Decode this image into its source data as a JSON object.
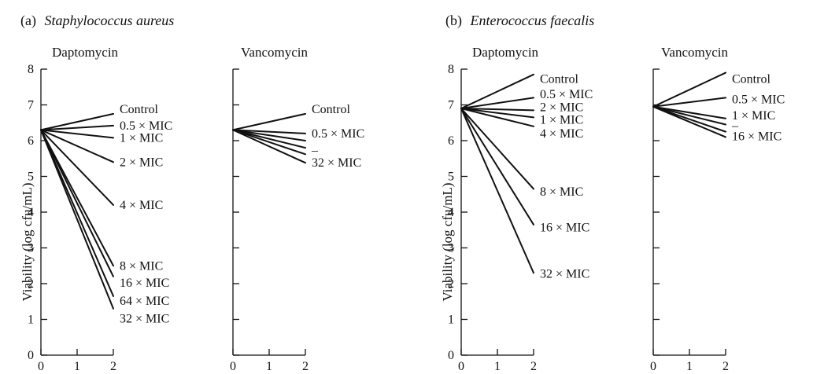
{
  "chart_data": [
    {
      "type": "line",
      "title_prefix": "(a)",
      "organism": "Staphylococcus aureus",
      "ylabel": "Viability (log cfu/mL)",
      "ylim": [
        0,
        8
      ],
      "yticks": [
        "0",
        "1",
        "2",
        "3",
        "4",
        "5",
        "6",
        "7",
        "8"
      ],
      "xticks": [
        "0",
        "1",
        "2"
      ],
      "xlim": [
        0,
        2
      ],
      "subplots": [
        {
          "title": "Daptomycin",
          "x": [
            0,
            2
          ],
          "series": [
            {
              "name": "Control",
              "values": [
                6.3,
                6.75
              ]
            },
            {
              "name": "0.5 × MIC",
              "values": [
                6.3,
                6.42
              ]
            },
            {
              "name": "1 × MIC",
              "values": [
                6.3,
                6.08
              ]
            },
            {
              "name": "2 × MIC",
              "values": [
                6.3,
                5.4
              ]
            },
            {
              "name": "4 × MIC",
              "values": [
                6.3,
                4.2
              ]
            },
            {
              "name": "8 × MIC",
              "values": [
                6.3,
                2.5
              ]
            },
            {
              "name": "16 × MIC",
              "values": [
                6.3,
                2.2
              ]
            },
            {
              "name": "64 × MIC",
              "values": [
                6.3,
                1.65
              ]
            },
            {
              "name": "32 × MIC",
              "values": [
                6.3,
                1.3
              ]
            }
          ],
          "labels": [
            {
              "text": "Control",
              "y": 6.88
            },
            {
              "text": "0.5 × MIC",
              "y": 6.42
            },
            {
              "text": "1 × MIC",
              "y": 6.08
            },
            {
              "text": "2 × MIC",
              "y": 5.4
            },
            {
              "text": "4 × MIC",
              "y": 4.2
            },
            {
              "text": "8 × MIC",
              "y": 2.5
            },
            {
              "text": "16 × MIC",
              "y": 2.02
            },
            {
              "text": "64 × MIC",
              "y": 1.52
            },
            {
              "text": "32 × MIC",
              "y": 1.02
            }
          ]
        },
        {
          "title": "Vancomycin",
          "x": [
            0,
            2
          ],
          "series": [
            {
              "name": "Control",
              "values": [
                6.3,
                6.75
              ]
            },
            {
              "name": "0.5 × MIC",
              "values": [
                6.3,
                6.2
              ]
            },
            {
              "values": [
                6.3,
                6.0
              ]
            },
            {
              "values": [
                6.3,
                5.8
              ]
            },
            {
              "values": [
                6.3,
                5.62
              ]
            },
            {
              "name": "32 × MIC",
              "values": [
                6.3,
                5.38
              ]
            }
          ],
          "labels": [
            {
              "text": "Control",
              "y": 6.88
            },
            {
              "text": "0.5 × MIC",
              "y": 6.2
            },
            {
              "text": "–",
              "y": 5.72
            },
            {
              "text": "32 × MIC",
              "y": 5.38
            }
          ]
        }
      ]
    },
    {
      "type": "line",
      "title_prefix": "(b)",
      "organism": "Enterococcus faecalis",
      "ylabel": "Viability (log cfu/mL)",
      "ylim": [
        0,
        8
      ],
      "yticks": [
        "0",
        "1",
        "2",
        "3",
        "4",
        "5",
        "6",
        "7",
        "8"
      ],
      "xticks": [
        "0",
        "1",
        "2"
      ],
      "xlim": [
        0,
        2
      ],
      "subplots": [
        {
          "title": "Daptomycin",
          "x": [
            0,
            2
          ],
          "series": [
            {
              "name": "Control",
              "values": [
                6.9,
                7.85
              ]
            },
            {
              "name": "0.5 × MIC",
              "values": [
                6.9,
                7.2
              ]
            },
            {
              "name": "2 × MIC",
              "values": [
                6.9,
                6.85
              ]
            },
            {
              "name": "1 × MIC",
              "values": [
                6.9,
                6.65
              ]
            },
            {
              "name": "4 × MIC",
              "values": [
                6.9,
                6.4
              ]
            },
            {
              "name": "8 × MIC",
              "values": [
                6.9,
                4.65
              ]
            },
            {
              "name": "16 × MIC",
              "values": [
                6.9,
                3.65
              ]
            },
            {
              "name": "32 × MIC",
              "values": [
                6.9,
                2.3
              ]
            }
          ],
          "labels": [
            {
              "text": "Control",
              "y": 7.72
            },
            {
              "text": "0.5 × MIC",
              "y": 7.3
            },
            {
              "text": "2 × MIC",
              "y": 6.93
            },
            {
              "text": "1 × MIC",
              "y": 6.58
            },
            {
              "text": "4 × MIC",
              "y": 6.2
            },
            {
              "text": "8 × MIC",
              "y": 4.57
            },
            {
              "text": "16 × MIC",
              "y": 3.57
            },
            {
              "text": "32 × MIC",
              "y": 2.27
            }
          ]
        },
        {
          "title": "Vancomycin",
          "x": [
            0,
            2
          ],
          "series": [
            {
              "name": "Control",
              "values": [
                6.95,
                7.9
              ]
            },
            {
              "name": "0.5 × MIC",
              "values": [
                6.95,
                7.2
              ]
            },
            {
              "name": "1 × MIC",
              "values": [
                6.95,
                6.62
              ]
            },
            {
              "values": [
                6.95,
                6.45
              ]
            },
            {
              "values": [
                6.95,
                6.25
              ]
            },
            {
              "name": "16 × MIC",
              "values": [
                6.95,
                6.1
              ]
            }
          ],
          "labels": [
            {
              "text": "Control",
              "y": 7.72
            },
            {
              "text": "0.5 × MIC",
              "y": 7.15
            },
            {
              "text": "1 × MIC",
              "y": 6.7
            },
            {
              "text": "–",
              "y": 6.42
            },
            {
              "text": "16 × MIC",
              "y": 6.12
            }
          ]
        }
      ]
    }
  ]
}
